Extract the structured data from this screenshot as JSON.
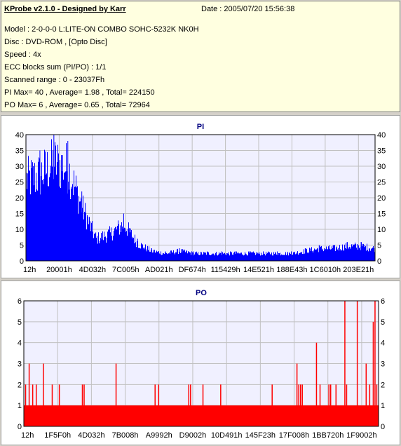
{
  "info": {
    "title": "KProbe v2.1.0 - Designed by Karr",
    "date": "Date : 2005/07/20 15:56:38",
    "lines": [
      "Model : 2-0-0-0 L:LITE-ON COMBO SOHC-5232K NK0H",
      "Disc : DVD-ROM ,  [Opto Disc]",
      "Speed : 4x",
      "ECC blocks sum (PI/PO) : 1/1",
      "Scanned range : 0 - 23037Fh",
      "PI Max= 40 , Average= 1.98 , Total= 224150",
      "PO Max= 6 , Average= 0.65 , Total= 72964"
    ]
  },
  "chart_data": [
    {
      "type": "bar",
      "title": "PI",
      "color": "#0000ff",
      "ylim": [
        0,
        40
      ],
      "yticks": [
        0,
        5,
        10,
        15,
        20,
        25,
        30,
        35,
        40
      ],
      "xlim": [
        0,
        2294911
      ],
      "xticks": [
        "12h",
        "20001h",
        "4D032h",
        "7C005h",
        "AD021h",
        "DF674h",
        "115429h",
        "14E521h",
        "188E43h",
        "1C6010h",
        "203E21h"
      ],
      "grid": true,
      "x": [
        0,
        4,
        8,
        12,
        16,
        20,
        24,
        28,
        32,
        36,
        40,
        44,
        48,
        52,
        56,
        60,
        64,
        68,
        72,
        76,
        80,
        84,
        88,
        92,
        96,
        100
      ],
      "values": [
        33,
        35,
        40,
        38,
        22,
        9,
        11,
        15,
        7,
        4,
        3,
        4,
        3,
        3,
        3,
        3,
        3,
        3,
        3,
        3,
        4,
        5,
        5,
        6,
        6,
        5
      ]
    },
    {
      "type": "bar",
      "title": "PO",
      "color": "#ff0000",
      "ylim": [
        0,
        6
      ],
      "yticks": [
        0,
        1,
        2,
        3,
        4,
        5,
        6
      ],
      "xlim": [
        0,
        2294911
      ],
      "xticks": [
        "12h",
        "1F5F0h",
        "4D032h",
        "7B008h",
        "A9992h",
        "D9002h",
        "10D491h",
        "145F23h",
        "17F008h",
        "1BB720h",
        "1F9002h"
      ],
      "grid": true,
      "baseline": 1,
      "x": [
        0.5,
        1.5,
        2.5,
        3.5,
        5.5,
        8.0,
        10.0,
        16.5,
        17.0,
        26.0,
        37.0,
        38.0,
        46.5,
        47.0,
        50.5,
        55.5,
        70.0,
        77.0,
        77.5,
        78.0,
        78.5,
        82.5,
        83.5,
        86.0,
        86.5,
        88.0,
        90.5,
        91.0,
        94.0,
        96.5,
        97.5,
        98.5,
        99.0,
        99.5
      ],
      "values": [
        2,
        3,
        2,
        2,
        3,
        2,
        2,
        2,
        2,
        3,
        2,
        2,
        2,
        2,
        2,
        2,
        2,
        3,
        2,
        2,
        2,
        4,
        2,
        2,
        2,
        2,
        6,
        2,
        6,
        3,
        2,
        5,
        6,
        2
      ]
    }
  ]
}
